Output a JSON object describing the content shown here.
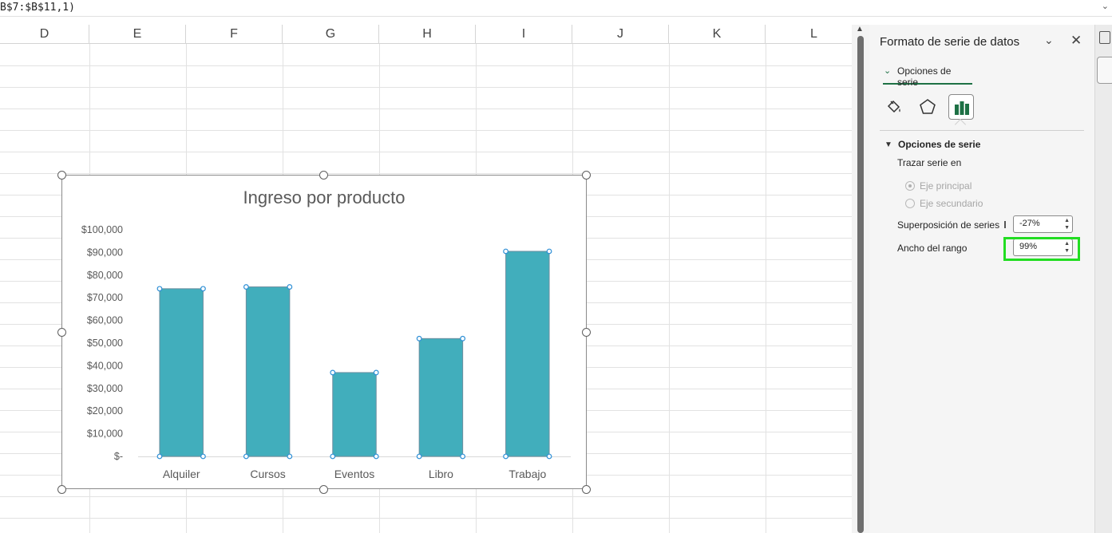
{
  "formula_bar": {
    "text": "B$7:$B$11,1)"
  },
  "columns": [
    "D",
    "E",
    "F",
    "G",
    "H",
    "I",
    "J",
    "K",
    "L"
  ],
  "chart_data": {
    "type": "bar",
    "title": "Ingreso por producto",
    "categories": [
      "Alquiler",
      "Cursos",
      "Eventos",
      "Libro",
      "Trabajo"
    ],
    "values": [
      74000,
      74800,
      37000,
      52000,
      90500
    ],
    "yticks": [
      "$100,000",
      "$90,000",
      "$80,000",
      "$70,000",
      "$60,000",
      "$50,000",
      "$40,000",
      "$30,000",
      "$20,000",
      "$10,000",
      "$-"
    ],
    "ylim": [
      0,
      100000
    ],
    "bar_color": "#41aebc",
    "xlabel": "",
    "ylabel": ""
  },
  "panel": {
    "title": "Formato de serie de datos",
    "tab_label": "Opciones de serie",
    "section_label": "Opciones de serie",
    "plot_series_label": "Trazar serie en",
    "radio_primary": "Eje principal",
    "radio_secondary": "Eje secundario",
    "overlap_label": "Superposición de series",
    "overlap_value": "-27%",
    "gap_label": "Ancho del rango",
    "gap_value": "99%",
    "accent_color": "#1e7145"
  }
}
